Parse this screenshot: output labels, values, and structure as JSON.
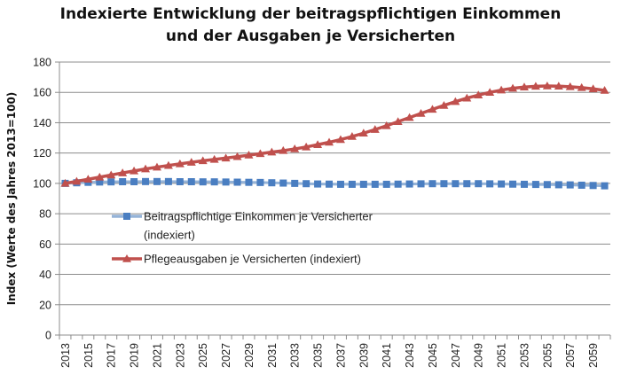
{
  "chart_data": {
    "type": "line",
    "title_lines": [
      "Indexierte Entwicklung der beitragspflichtigen Einkommen",
      "und der Ausgaben je Versicherten"
    ],
    "xlabel": "",
    "ylabel": "Index (Werte des Jahres 2013=100)",
    "ylim": [
      0,
      180
    ],
    "yticks": [
      0,
      20,
      40,
      60,
      80,
      100,
      120,
      140,
      160,
      180
    ],
    "grid": true,
    "legend_placement": "center-left",
    "x": [
      2013,
      2014,
      2015,
      2016,
      2017,
      2018,
      2019,
      2020,
      2021,
      2022,
      2023,
      2024,
      2025,
      2026,
      2027,
      2028,
      2029,
      2030,
      2031,
      2032,
      2033,
      2034,
      2035,
      2036,
      2037,
      2038,
      2039,
      2040,
      2041,
      2042,
      2043,
      2044,
      2045,
      2046,
      2047,
      2048,
      2049,
      2050,
      2051,
      2052,
      2053,
      2054,
      2055,
      2056,
      2057,
      2058,
      2059,
      2060
    ],
    "xtick_labels": [
      "2013",
      "2015",
      "2017",
      "2019",
      "2021",
      "2023",
      "2025",
      "2027",
      "2029",
      "2031",
      "2033",
      "2035",
      "2037",
      "2039",
      "2041",
      "2043",
      "2045",
      "2047",
      "2049",
      "2051",
      "2053",
      "2055",
      "2057",
      "2059"
    ],
    "series": [
      {
        "name": "Beitragspflichtige Einkommen je Versicherter (indexiert)",
        "legend_lines": [
          "Beitragspflichtige Einkommen je Versicherter",
          "(indexiert)"
        ],
        "color": "#4A7EC1",
        "line_color": "#95B3D7",
        "marker": "square",
        "values": [
          100,
          100.4,
          100.7,
          100.9,
          101,
          101.1,
          101.1,
          101.2,
          101.2,
          101.2,
          101.1,
          101.1,
          101,
          101,
          100.9,
          100.8,
          100.7,
          100.6,
          100.4,
          100.2,
          100,
          99.8,
          99.6,
          99.5,
          99.4,
          99.4,
          99.4,
          99.4,
          99.4,
          99.5,
          99.6,
          99.7,
          99.8,
          99.8,
          99.8,
          99.8,
          99.8,
          99.7,
          99.6,
          99.5,
          99.4,
          99.3,
          99.2,
          99.1,
          99,
          98.8,
          98.6,
          98.4
        ]
      },
      {
        "name": "Pflegeausgaben je Versicherten (indexiert)",
        "legend_lines": [
          "Pflegeausgaben je Versicherten (indexiert)"
        ],
        "color": "#C0504D",
        "line_color": "#C0504D",
        "marker": "triangle",
        "values": [
          100,
          101.3,
          102.7,
          104.1,
          105.5,
          106.9,
          108.2,
          109.5,
          110.7,
          111.8,
          112.9,
          113.9,
          114.9,
          115.8,
          116.7,
          117.6,
          118.6,
          119.6,
          120.6,
          121.6,
          122.7,
          124,
          125.5,
          127.1,
          128.9,
          130.9,
          133.1,
          135.5,
          138,
          140.7,
          143.4,
          146.1,
          148.8,
          151.4,
          153.9,
          156.2,
          158.2,
          160,
          161.5,
          162.7,
          163.5,
          164,
          164.2,
          164.1,
          163.7,
          163.1,
          162.3,
          161.3
        ]
      }
    ]
  }
}
